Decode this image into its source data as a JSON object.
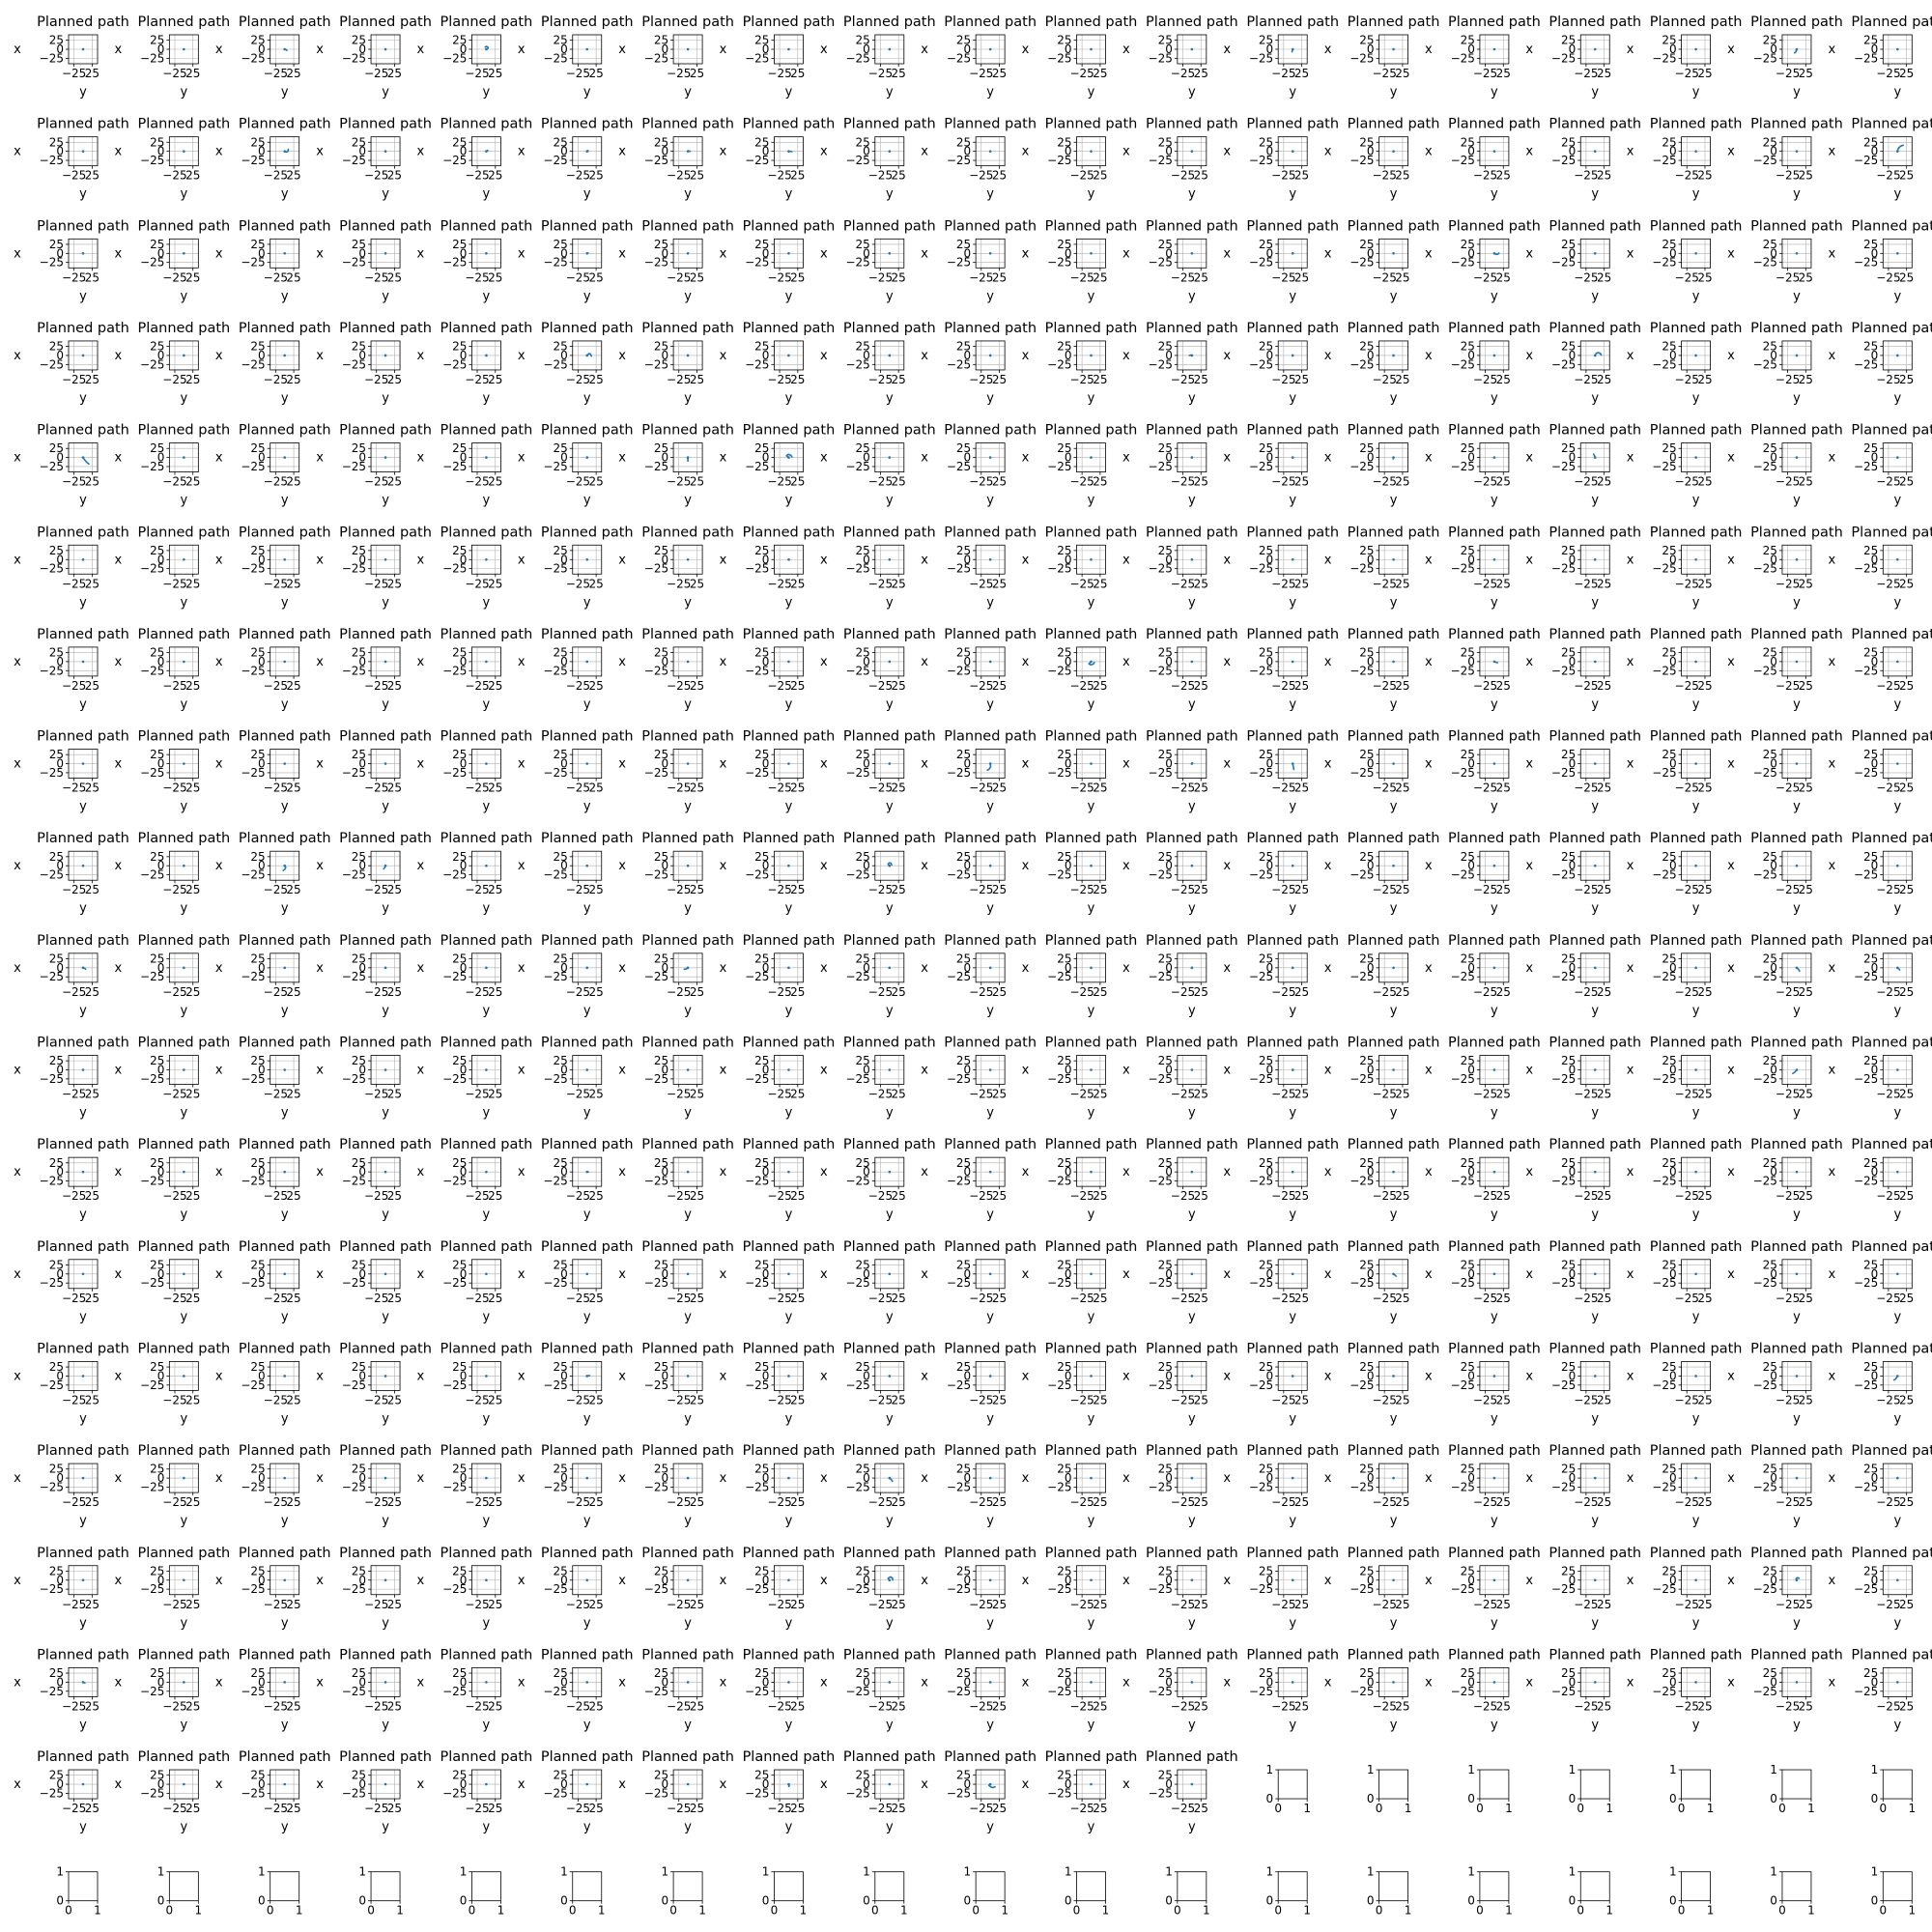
{
  "figure": {
    "rows": 19,
    "cols": 19,
    "style": {
      "line_color": "#1f77b4",
      "frame_color": "#000000",
      "grid_color": "#b0b0b0",
      "background": "#ffffff"
    }
  },
  "chart_data": {
    "type": "line",
    "panel_template": {
      "title": "Planned path",
      "xlabel": "y",
      "ylabel": "x",
      "xlim": [
        -40,
        40
      ],
      "ylim": [
        -40,
        40
      ],
      "xticks": [
        -25,
        25
      ],
      "yticks": [
        -25,
        0,
        25
      ],
      "grid": true
    },
    "empty_panel_template": {
      "xlim": [
        0,
        1
      ],
      "ylim": [
        0,
        1
      ],
      "xticks": [
        0,
        1
      ],
      "yticks": [
        0,
        1
      ],
      "grid": false
    },
    "path_panels": 335,
    "empty_panels": 26,
    "paths": {
      "0_2": [
        [
          0,
          0
        ],
        [
          4,
          -1
        ],
        [
          6,
          -3
        ]
      ],
      "0_4": [
        [
          0,
          0
        ],
        [
          4,
          2
        ],
        [
          5,
          5
        ],
        [
          1,
          8
        ],
        [
          -3,
          6
        ]
      ],
      "0_12": [
        [
          0,
          0
        ],
        [
          -1,
          -4
        ],
        [
          -2,
          -7
        ]
      ],
      "0_17": [
        [
          0,
          0
        ],
        [
          -1,
          -4
        ],
        [
          -3,
          -8
        ],
        [
          -6,
          -10
        ]
      ],
      "1_2": [
        [
          0,
          0
        ],
        [
          5,
          -2
        ],
        [
          9,
          0
        ],
        [
          10,
          6
        ]
      ],
      "1_4": [
        [
          0,
          0
        ],
        [
          3,
          1
        ],
        [
          4,
          3
        ]
      ],
      "1_5": [
        [
          0,
          0
        ],
        [
          3,
          2
        ]
      ],
      "1_6": [
        [
          0,
          0
        ],
        [
          4,
          1
        ],
        [
          6,
          0
        ]
      ],
      "1_7": [
        [
          0,
          0
        ],
        [
          5,
          0
        ],
        [
          9,
          -1
        ]
      ],
      "1_18": [
        [
          0,
          0
        ],
        [
          2,
          8
        ],
        [
          8,
          14
        ],
        [
          16,
          17
        ]
      ],
      "2_14": [
        [
          0,
          0
        ],
        [
          5,
          -3
        ],
        [
          10,
          -2
        ],
        [
          13,
          1
        ]
      ],
      "2_5": [
        [
          0,
          0
        ],
        [
          3,
          1
        ]
      ],
      "3_5": [
        [
          0,
          0
        ],
        [
          5,
          5
        ],
        [
          9,
          4
        ],
        [
          12,
          -2
        ]
      ],
      "3_11": [
        [
          0,
          0
        ],
        [
          -4,
          1
        ],
        [
          -7,
          0
        ]
      ],
      "3_15": [
        [
          0,
          0
        ],
        [
          3,
          6
        ],
        [
          9,
          8
        ],
        [
          14,
          6
        ],
        [
          17,
          1
        ]
      ],
      "4_0": [
        [
          0,
          0
        ],
        [
          4,
          -6
        ],
        [
          10,
          -13
        ],
        [
          16,
          -18
        ]
      ],
      "4_6": [
        [
          0,
          0
        ],
        [
          0,
          -10
        ]
      ],
      "4_7": [
        [
          0,
          0
        ],
        [
          -6,
          5
        ],
        [
          -1,
          9
        ],
        [
          6,
          6
        ],
        [
          9,
          2
        ]
      ],
      "4_15": [
        [
          0,
          0
        ],
        [
          -2,
          5
        ],
        [
          -4,
          9
        ]
      ],
      "4_13": [
        [
          0,
          0
        ],
        [
          -1,
          -4
        ]
      ],
      "5_7": [
        [
          0,
          0
        ],
        [
          2,
          0
        ]
      ],
      "6_10": [
        [
          0,
          0
        ],
        [
          -6,
          -6
        ],
        [
          -1,
          -9
        ],
        [
          6,
          -7
        ],
        [
          9,
          -2
        ]
      ],
      "6_14": [
        [
          0,
          0
        ],
        [
          5,
          -2
        ],
        [
          9,
          -3
        ]
      ],
      "7_9": [
        [
          0,
          0
        ],
        [
          1,
          -8
        ],
        [
          -3,
          -15
        ],
        [
          -8,
          -18
        ]
      ],
      "7_12": [
        [
          0,
          0
        ],
        [
          2,
          -10
        ],
        [
          3,
          -16
        ]
      ],
      "7_11": [
        [
          0,
          0
        ],
        [
          2,
          2
        ]
      ],
      "8_2": [
        [
          0,
          0
        ],
        [
          3,
          -4
        ],
        [
          1,
          -9
        ],
        [
          -4,
          -13
        ]
      ],
      "8_3": [
        [
          0,
          0
        ],
        [
          -2,
          -5
        ],
        [
          -5,
          -9
        ]
      ],
      "8_8": [
        [
          0,
          0
        ],
        [
          -4,
          4
        ],
        [
          -1,
          8
        ],
        [
          4,
          7
        ],
        [
          6,
          2
        ]
      ],
      "9_0": [
        [
          0,
          0
        ],
        [
          4,
          -1
        ],
        [
          7,
          -4
        ]
      ],
      "9_6": [
        [
          0,
          0
        ],
        [
          -6,
          -4
        ],
        [
          -10,
          -4
        ]
      ],
      "9_18": [
        [
          0,
          0
        ],
        [
          4,
          -3
        ],
        [
          6,
          -6
        ]
      ],
      "9_17": [
        [
          0,
          0
        ],
        [
          5,
          -4
        ],
        [
          8,
          -9
        ]
      ],
      "10_17": [
        [
          0,
          0
        ],
        [
          -6,
          -7
        ],
        [
          -11,
          -10
        ]
      ],
      "10_12": [
        [
          0,
          0
        ],
        [
          2,
          0
        ]
      ],
      "11_5": [
        [
          0,
          0
        ],
        [
          4,
          0
        ]
      ],
      "12_13": [
        [
          0,
          0
        ],
        [
          4,
          -3
        ],
        [
          7,
          -6
        ]
      ],
      "13_5": [
        [
          0,
          0
        ],
        [
          4,
          1
        ],
        [
          7,
          1
        ]
      ],
      "13_18": [
        [
          0,
          0
        ],
        [
          -3,
          -5
        ],
        [
          -6,
          -9
        ],
        [
          -10,
          -11
        ]
      ],
      "14_8": [
        [
          0,
          0
        ],
        [
          5,
          -4
        ],
        [
          8,
          -9
        ]
      ],
      "15_8": [
        [
          0,
          0
        ],
        [
          -4,
          5
        ],
        [
          2,
          9
        ],
        [
          8,
          6
        ],
        [
          9,
          0
        ]
      ],
      "15_17": [
        [
          0,
          0
        ],
        [
          -2,
          4
        ],
        [
          2,
          7
        ],
        [
          6,
          5
        ]
      ],
      "16_0": [
        [
          0,
          0
        ],
        [
          3,
          -1
        ],
        [
          5,
          -2
        ]
      ],
      "17_7": [
        [
          0,
          0
        ],
        [
          2,
          -3
        ],
        [
          0,
          -6
        ]
      ],
      "17_9": [
        [
          0,
          0
        ],
        [
          -4,
          -3
        ],
        [
          2,
          -8
        ],
        [
          9,
          -9
        ],
        [
          13,
          -7
        ]
      ]
    }
  }
}
